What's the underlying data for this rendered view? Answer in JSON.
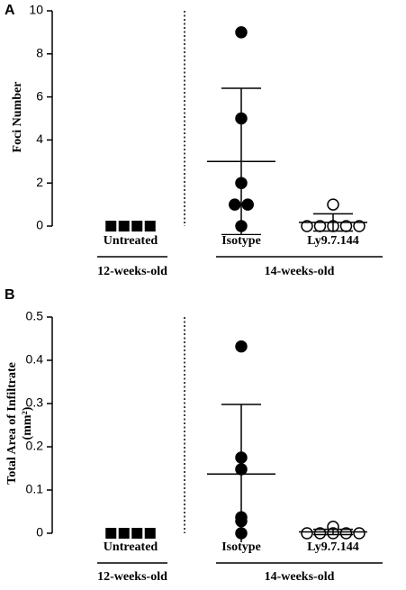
{
  "chart_data": [
    {
      "type": "dot",
      "panel": "A",
      "ylabel": [
        "Foci Number"
      ],
      "categories": [
        "Untreated",
        "Isotype",
        "Ly9.7.144"
      ],
      "groups": [
        {
          "label": "12-weeks-old",
          "size": 1
        },
        {
          "label": "14-weeks-old",
          "size": 2
        }
      ],
      "markers": [
        "square",
        "circle",
        "open-circle"
      ],
      "points": [
        [
          0,
          0,
          0,
          0
        ],
        [
          9,
          5,
          2,
          1,
          1,
          0
        ],
        [
          1,
          0,
          0,
          0,
          0,
          0
        ]
      ],
      "mean": [
        null,
        3,
        0.17
      ],
      "sd": [
        null,
        3.4,
        0.4
      ],
      "ylim": [
        0,
        10
      ],
      "yticks": [
        0,
        2,
        4,
        6,
        8,
        10
      ]
    },
    {
      "type": "dot",
      "panel": "B",
      "ylabel": [
        "Total Area of Infiltrate",
        "(mm²)"
      ],
      "categories": [
        "Untreated",
        "Isotype",
        "Ly9.7.144"
      ],
      "groups": [
        {
          "label": "12-weeks-old",
          "size": 1
        },
        {
          "label": "14-weeks-old",
          "size": 2
        }
      ],
      "markers": [
        "square",
        "circle",
        "open-circle"
      ],
      "points": [
        [
          0,
          0,
          0,
          0
        ],
        [
          0.432,
          0.175,
          0.148,
          0.037,
          0.028,
          0
        ],
        [
          0.015,
          0,
          0,
          0,
          0,
          0
        ]
      ],
      "mean": [
        null,
        0.137,
        0.003
      ],
      "sd": [
        null,
        0.161,
        0.006
      ],
      "ylim": [
        0,
        0.5
      ],
      "yticks": [
        0,
        0.1,
        0.2,
        0.3,
        0.4,
        0.5
      ]
    }
  ]
}
